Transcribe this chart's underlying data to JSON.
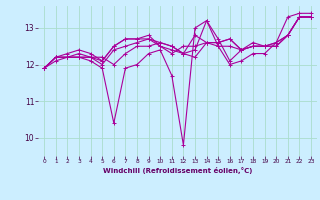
{
  "xlabel": "Windchill (Refroidissement éolien,°C)",
  "ylabel": "",
  "background_color": "#cceeff",
  "grid_color": "#aaddcc",
  "line_color": "#aa0099",
  "xlim": [
    -0.5,
    23.5
  ],
  "ylim": [
    9.5,
    13.6
  ],
  "yticks": [
    10,
    11,
    12,
    13
  ],
  "xticks": [
    0,
    1,
    2,
    3,
    4,
    5,
    6,
    7,
    8,
    9,
    10,
    11,
    12,
    13,
    14,
    15,
    16,
    17,
    18,
    19,
    20,
    21,
    22,
    23
  ],
  "series": [
    {
      "x": [
        0,
        1,
        2,
        3,
        4,
        5,
        6,
        7,
        8,
        9,
        10,
        11,
        12,
        13,
        14,
        15,
        16,
        17,
        18,
        19,
        20,
        21,
        22,
        23
      ],
      "y": [
        11.9,
        12.2,
        12.2,
        12.2,
        12.1,
        11.9,
        10.4,
        11.9,
        12.0,
        12.3,
        12.4,
        11.7,
        9.8,
        13.0,
        13.2,
        12.5,
        12.0,
        12.1,
        12.3,
        12.3,
        12.6,
        13.3,
        13.4,
        13.4
      ]
    },
    {
      "x": [
        0,
        1,
        2,
        3,
        4,
        5,
        6,
        7,
        8,
        9,
        10,
        11,
        12,
        13,
        14,
        15,
        16,
        17,
        18,
        19,
        20,
        21,
        22,
        23
      ],
      "y": [
        11.9,
        12.2,
        12.2,
        12.3,
        12.2,
        12.0,
        12.4,
        12.5,
        12.6,
        12.7,
        12.5,
        12.4,
        12.3,
        12.2,
        12.6,
        12.5,
        12.5,
        12.4,
        12.5,
        12.5,
        12.6,
        12.8,
        13.3,
        13.3
      ]
    },
    {
      "x": [
        0,
        1,
        2,
        3,
        4,
        5,
        6,
        7,
        8,
        9,
        10,
        11,
        12,
        13,
        14,
        15,
        16,
        17,
        18,
        19,
        20,
        21,
        22,
        23
      ],
      "y": [
        11.9,
        12.1,
        12.2,
        12.2,
        12.2,
        12.2,
        12.0,
        12.3,
        12.5,
        12.5,
        12.6,
        12.5,
        12.3,
        12.8,
        12.6,
        12.6,
        12.7,
        12.4,
        12.5,
        12.5,
        12.6,
        12.8,
        13.3,
        13.3
      ]
    },
    {
      "x": [
        0,
        1,
        2,
        3,
        4,
        5,
        6,
        7,
        8,
        9,
        10,
        11,
        12,
        13,
        14,
        15,
        16,
        17,
        18,
        19,
        20,
        21,
        22,
        23
      ],
      "y": [
        11.9,
        12.2,
        12.3,
        12.4,
        12.3,
        12.1,
        12.5,
        12.7,
        12.7,
        12.7,
        12.6,
        12.5,
        12.3,
        12.4,
        13.2,
        12.7,
        12.1,
        12.4,
        12.6,
        12.5,
        12.5,
        12.8,
        13.3,
        13.3
      ]
    },
    {
      "x": [
        0,
        1,
        2,
        3,
        4,
        5,
        6,
        7,
        8,
        9,
        10,
        11,
        12,
        13,
        14,
        15,
        16,
        17,
        18,
        19,
        20,
        21,
        22,
        23
      ],
      "y": [
        11.9,
        12.2,
        12.2,
        12.2,
        12.2,
        12.1,
        12.5,
        12.7,
        12.7,
        12.8,
        12.5,
        12.3,
        12.5,
        12.5,
        12.6,
        12.6,
        12.7,
        12.4,
        12.5,
        12.5,
        12.5,
        12.8,
        13.3,
        13.3
      ]
    }
  ]
}
